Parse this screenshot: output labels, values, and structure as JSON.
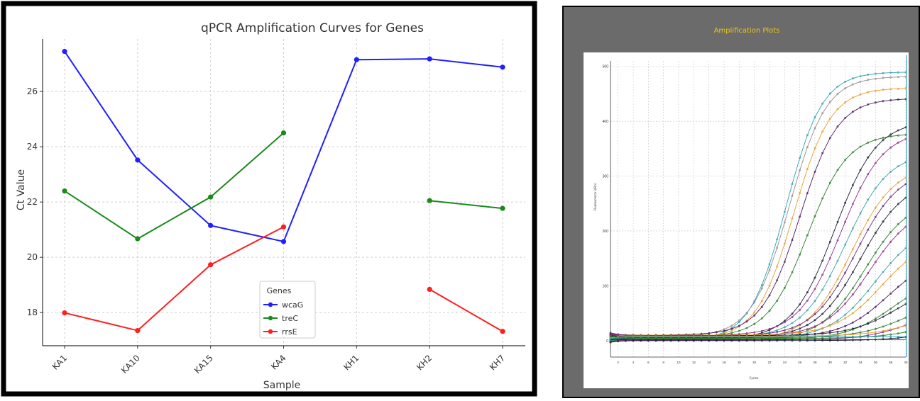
{
  "left_chart": {
    "title": "qPCR Amplification Curves for Genes",
    "xlabel": "Sample",
    "ylabel": "Ct Value",
    "categories": [
      "KA1",
      "KA10",
      "KA15",
      "KA4",
      "KH1",
      "KH2",
      "KH7"
    ],
    "yticks": [
      "18",
      "20",
      "22",
      "24",
      "26"
    ],
    "legend_title": "Genes"
  },
  "right_chart": {
    "title": "Amplification Plots",
    "ylabel": "Fluorescence (dRn)",
    "xlabel": "Cycles",
    "yticks": [
      "0",
      "100",
      "200",
      "300",
      "400",
      "500"
    ],
    "xticks": [
      "2",
      "4",
      "6",
      "8",
      "10",
      "12",
      "14",
      "16",
      "18",
      "20",
      "22",
      "24",
      "26",
      "28",
      "30",
      "32",
      "34",
      "36",
      "38",
      "40"
    ]
  },
  "colors": {
    "wcaG": "#1f1fff",
    "treC": "#1a8a1a",
    "rrsE": "#ff1f1f",
    "panel_gray": "#6b6b6b",
    "title_yellow": "#e6c619"
  },
  "chart_data": [
    {
      "type": "line",
      "title": "qPCR Amplification Curves for Genes",
      "xlabel": "Sample",
      "ylabel": "Ct Value",
      "categories": [
        "KA1",
        "KA10",
        "KA15",
        "KA4",
        "KH1",
        "KH2",
        "KH7"
      ],
      "ylim": [
        16.8,
        27.9
      ],
      "grid": true,
      "legend": "lower-center",
      "series": [
        {
          "name": "wcaG",
          "values": [
            27.45,
            23.52,
            21.15,
            20.57,
            27.15,
            27.18,
            26.88
          ]
        },
        {
          "name": "treC",
          "values": [
            22.4,
            20.67,
            22.18,
            24.5,
            null,
            22.05,
            21.77
          ]
        },
        {
          "name": "rrsE",
          "values": [
            17.99,
            17.35,
            19.73,
            21.1,
            null,
            18.84,
            17.32
          ]
        }
      ]
    },
    {
      "type": "line",
      "title": "Amplification Plots",
      "xlabel": "Cycles",
      "ylabel": "Fluorescence (dRn)",
      "xlim": [
        1,
        40
      ],
      "ylim": [
        -30,
        510
      ],
      "grid": true,
      "series": [
        {
          "color": "#2aa1b0",
          "ct": 24.2,
          "plateau": 490,
          "k": 0.42
        },
        {
          "color": "#8f8f8f",
          "ct": 24.6,
          "plateau": 475,
          "k": 0.41
        },
        {
          "color": "#e89b2a",
          "ct": 25.2,
          "plateau": 458,
          "k": 0.41
        },
        {
          "color": "#4a1660",
          "ct": 26.0,
          "plateau": 432,
          "k": 0.4
        },
        {
          "color": "#2a7a2a",
          "ct": 27.0,
          "plateau": 372,
          "k": 0.38
        },
        {
          "color": "#1a1a3a",
          "ct": 30.6,
          "plateau": 400,
          "k": 0.36
        },
        {
          "color": "#8a2a8a",
          "ct": 31.4,
          "plateau": 375,
          "k": 0.36
        },
        {
          "color": "#3aa0a8",
          "ct": 32.0,
          "plateau": 340,
          "k": 0.35
        },
        {
          "color": "#e89b2a",
          "ct": 32.8,
          "plateau": 320,
          "k": 0.35
        },
        {
          "color": "#6a2a7a",
          "ct": 33.4,
          "plateau": 305,
          "k": 0.35
        },
        {
          "color": "#1a1a3a",
          "ct": 34.0,
          "plateau": 290,
          "k": 0.34
        },
        {
          "color": "#2a7a2a",
          "ct": 34.6,
          "plateau": 260,
          "k": 0.34
        },
        {
          "color": "#8a2a8a",
          "ct": 35.2,
          "plateau": 240,
          "k": 0.34
        },
        {
          "color": "#3aa0a8",
          "ct": 36.0,
          "plateau": 210,
          "k": 0.33
        },
        {
          "color": "#e89b2a",
          "ct": 36.8,
          "plateau": 180,
          "k": 0.33
        },
        {
          "color": "#4a1660",
          "ct": 37.6,
          "plateau": 150,
          "k": 0.33
        },
        {
          "color": "#2a7a2a",
          "ct": 38.4,
          "plateau": 120,
          "k": 0.32
        },
        {
          "color": "#1a1a3a",
          "ct": 39.0,
          "plateau": 100,
          "k": 0.32
        },
        {
          "color": "#2a7a2a",
          "ct": 40.5,
          "plateau": 80,
          "k": 0.3
        },
        {
          "color": "#8a2a8a",
          "ct": 41.5,
          "plateau": 70,
          "k": 0.3
        },
        {
          "color": "#e89b2a",
          "ct": 42.5,
          "plateau": 60,
          "k": 0.3
        },
        {
          "color": "#2a7a2a",
          "ct": 44.0,
          "plateau": 50,
          "k": 0.3
        },
        {
          "color": "#1a1a3a",
          "ct": 46.0,
          "plateau": 45,
          "k": 0.3
        },
        {
          "color": "#2aa1b0",
          "ct": 60.0,
          "plateau": 40,
          "k": 0.3
        }
      ]
    }
  ]
}
